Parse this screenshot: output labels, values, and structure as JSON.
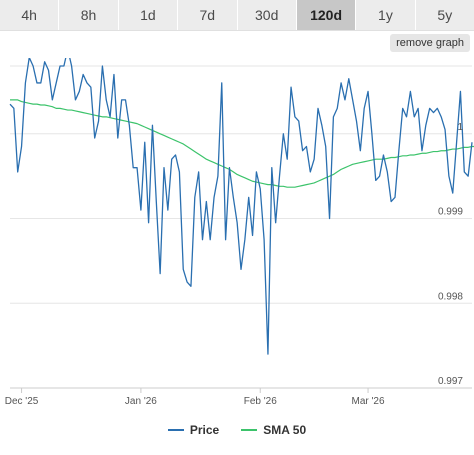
{
  "range_buttons": [
    {
      "label": "4h",
      "active": false
    },
    {
      "label": "8h",
      "active": false
    },
    {
      "label": "1d",
      "active": false
    },
    {
      "label": "7d",
      "active": false
    },
    {
      "label": "30d",
      "active": false
    },
    {
      "label": "120d",
      "active": true
    },
    {
      "label": "1y",
      "active": false
    },
    {
      "label": "5y",
      "active": false
    }
  ],
  "remove_graph_label": "remove graph",
  "chart_data": {
    "type": "line",
    "ylim": [
      0.997,
      1.0008
    ],
    "y_ticks": [
      1,
      0.999,
      0.998,
      0.997
    ],
    "y_tick_labels": [
      "1",
      "0.999",
      "0.998",
      "0.997"
    ],
    "x_ticks": [
      {
        "label": "Dec '25",
        "index": 3
      },
      {
        "label": "Jan '26",
        "index": 34
      },
      {
        "label": "Feb '26",
        "index": 65
      },
      {
        "label": "Mar '26",
        "index": 93
      }
    ],
    "grid": true,
    "legend_position": "bottom",
    "series": [
      {
        "name": "Price",
        "color": "#2a6fb0",
        "values": [
          1.00035,
          1.0003,
          0.99955,
          0.99985,
          1.0006,
          1.0009,
          1.0008,
          1.0006,
          1.0006,
          1.00085,
          1.00075,
          1.0004,
          1.0006,
          1.0008,
          1.0008,
          1.001,
          1.0008,
          1.0004,
          1.0005,
          1.0007,
          1.0006,
          1.00055,
          0.99995,
          1.00015,
          1.0008,
          1.0004,
          1.0002,
          1.0007,
          0.99995,
          1.0004,
          1.0004,
          1.0001,
          0.9996,
          0.9996,
          0.9991,
          0.9999,
          0.99895,
          1.0001,
          0.9992,
          0.99835,
          0.9996,
          0.9991,
          0.9997,
          0.99975,
          0.99955,
          0.9984,
          0.99825,
          0.9982,
          0.99925,
          0.99955,
          0.99875,
          0.9992,
          0.99875,
          0.99925,
          0.9995,
          1.0006,
          0.99875,
          0.9996,
          0.99925,
          0.99895,
          0.9984,
          0.99875,
          0.99925,
          0.9988,
          0.99955,
          0.99935,
          0.99875,
          0.9974,
          0.9996,
          0.99895,
          0.9995,
          1.0,
          0.9997,
          1.00055,
          1.0002,
          1.00015,
          0.9998,
          0.99985,
          0.99955,
          0.9997,
          1.0003,
          1.0001,
          0.99985,
          0.999,
          1.0002,
          1.0003,
          1.0006,
          1.0004,
          1.00065,
          1.0004,
          1.00015,
          0.9998,
          1.0003,
          1.0005,
          1.0,
          0.99945,
          0.9995,
          0.99975,
          0.99955,
          0.9992,
          0.99925,
          0.9998,
          1.0003,
          1.0002,
          1.0005,
          1.0002,
          1.0003,
          0.9998,
          1.0001,
          1.0003,
          1.00025,
          1.0003,
          1.0002,
          1.00005,
          0.9995,
          0.9993,
          0.9999,
          1.0005,
          0.99955,
          0.9995,
          0.9999
        ]
      },
      {
        "name": "SMA 50",
        "color": "#3cc36b",
        "values": [
          1.0004,
          1.0004,
          1.0004,
          1.00038,
          1.00037,
          1.00036,
          1.00035,
          1.00035,
          1.00034,
          1.00034,
          1.00033,
          1.00032,
          1.0003,
          1.0003,
          1.00029,
          1.00028,
          1.00028,
          1.00027,
          1.00026,
          1.00025,
          1.00024,
          1.00023,
          1.00022,
          1.00021,
          1.0002,
          1.0002,
          1.00019,
          1.00018,
          1.00017,
          1.00016,
          1.00015,
          1.00014,
          1.00013,
          1.00012,
          1.0001,
          1.00008,
          1.00006,
          1.00004,
          1.00002,
          1.0,
          0.99998,
          0.99996,
          0.99994,
          0.99992,
          0.9999,
          0.99988,
          0.99985,
          0.99982,
          0.99979,
          0.99976,
          0.99973,
          0.9997,
          0.99968,
          0.99966,
          0.99964,
          0.99962,
          0.9996,
          0.99958,
          0.99955,
          0.99952,
          0.9995,
          0.99948,
          0.99946,
          0.99944,
          0.99943,
          0.99942,
          0.99941,
          0.9994,
          0.9994,
          0.99939,
          0.99938,
          0.99938,
          0.99937,
          0.99937,
          0.99937,
          0.99938,
          0.99939,
          0.9994,
          0.99941,
          0.99942,
          0.99944,
          0.99946,
          0.99948,
          0.9995,
          0.99952,
          0.99955,
          0.99958,
          0.9996,
          0.99962,
          0.99964,
          0.99965,
          0.99966,
          0.99967,
          0.99968,
          0.99969,
          0.9997,
          0.9997,
          0.9997,
          0.99971,
          0.99972,
          0.99972,
          0.99973,
          0.99974,
          0.99974,
          0.99975,
          0.99975,
          0.99976,
          0.99977,
          0.99977,
          0.99978,
          0.99979,
          0.99979,
          0.9998,
          0.9998,
          0.99981,
          0.99982,
          0.99982,
          0.99983,
          0.99984,
          0.99984,
          0.99985,
          0.99985
        ]
      }
    ]
  }
}
